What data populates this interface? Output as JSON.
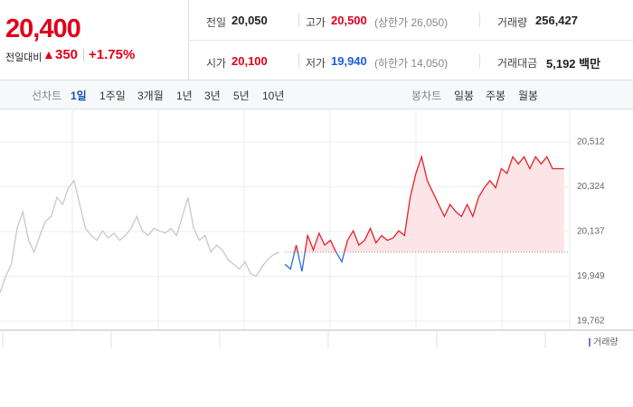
{
  "header": {
    "price": "20,400",
    "change_label": "전일대비",
    "change_arrow": "▲",
    "change": "350",
    "change_rate": "+1.75%"
  },
  "stats": [
    {
      "label": "전일",
      "value": "20,050"
    },
    {
      "label": "고가",
      "value": "20,500",
      "note": "(상한가 26,050)"
    },
    {
      "label": "거래량",
      "value": "256,427"
    },
    {
      "label": "시가",
      "value": "20,100"
    },
    {
      "label": "저가",
      "value": "19,940",
      "note": "(하한가 14,050)"
    },
    {
      "label": "거래대금",
      "value": "5,192 백만"
    }
  ],
  "tabs": {
    "line_label": "선차트",
    "line": [
      "1일",
      "1주일",
      "3개월",
      "1년",
      "3년",
      "5년",
      "10년"
    ],
    "candle_label": "봉차트",
    "candle": [
      "일봉",
      "주봉",
      "월봉"
    ]
  },
  "chart_data": {
    "type": "line",
    "ylim": [
      19724,
      20614
    ],
    "yticks": [
      {
        "value": 20512,
        "label": "20,512"
      },
      {
        "value": 20324,
        "label": "20,324"
      },
      {
        "value": 20137,
        "label": "20,137"
      },
      {
        "value": 19949,
        "label": "19,949"
      },
      {
        "value": 19762,
        "label": "19,762"
      }
    ],
    "baseline": 20050,
    "grid": true,
    "volume_label": "거래량",
    "volume_color": "#8c6bc8",
    "series": [
      {
        "color": "#c8c8cc",
        "values": [
          19880,
          19950,
          20000,
          20150,
          20220,
          20100,
          20050,
          20120,
          20180,
          20200,
          20280,
          20250,
          20320,
          20350,
          20250,
          20150,
          20120,
          20100,
          20140,
          20110,
          20130,
          20100,
          20120,
          20150,
          20200,
          20140,
          20120,
          20150,
          20140,
          20130,
          20150,
          20120,
          20200,
          20280,
          20150,
          20100,
          20120,
          20050,
          20080,
          20060,
          20020,
          20000,
          19980,
          20010,
          19960,
          19950,
          19990,
          20020,
          20040,
          20050,
          null,
          null,
          null,
          null,
          null,
          null,
          null,
          null,
          null,
          null,
          null,
          null,
          null,
          null,
          null,
          null,
          null,
          null,
          null,
          null,
          null,
          null,
          null,
          null,
          null,
          null,
          null,
          null,
          null,
          null,
          null,
          null,
          null,
          null,
          null,
          null,
          null,
          null,
          null,
          null,
          null,
          null,
          null,
          null,
          null,
          null,
          null,
          null,
          null,
          null
        ]
      },
      {
        "color": "#e8202a",
        "color_down": "#2b6fd6",
        "fill": "#fde4e6",
        "values": [
          null,
          null,
          null,
          null,
          null,
          null,
          null,
          null,
          null,
          null,
          null,
          null,
          null,
          null,
          null,
          null,
          null,
          null,
          null,
          null,
          null,
          null,
          null,
          null,
          null,
          null,
          null,
          null,
          null,
          null,
          null,
          null,
          null,
          null,
          null,
          null,
          null,
          null,
          null,
          null,
          null,
          null,
          null,
          null,
          null,
          null,
          null,
          null,
          null,
          null,
          20000,
          19980,
          20080,
          19970,
          20120,
          20060,
          20130,
          20080,
          20100,
          20050,
          20010,
          20100,
          20140,
          20080,
          20100,
          20150,
          20090,
          20120,
          20100,
          20110,
          20140,
          20120,
          20280,
          20380,
          20450,
          20350,
          20300,
          20250,
          20200,
          20250,
          20220,
          20200,
          20250,
          20200,
          20280,
          20320,
          20350,
          20320,
          20400,
          20380,
          20450,
          20420,
          20450,
          20400,
          20450,
          20420,
          20450,
          20400,
          20400,
          20400
        ]
      }
    ]
  }
}
